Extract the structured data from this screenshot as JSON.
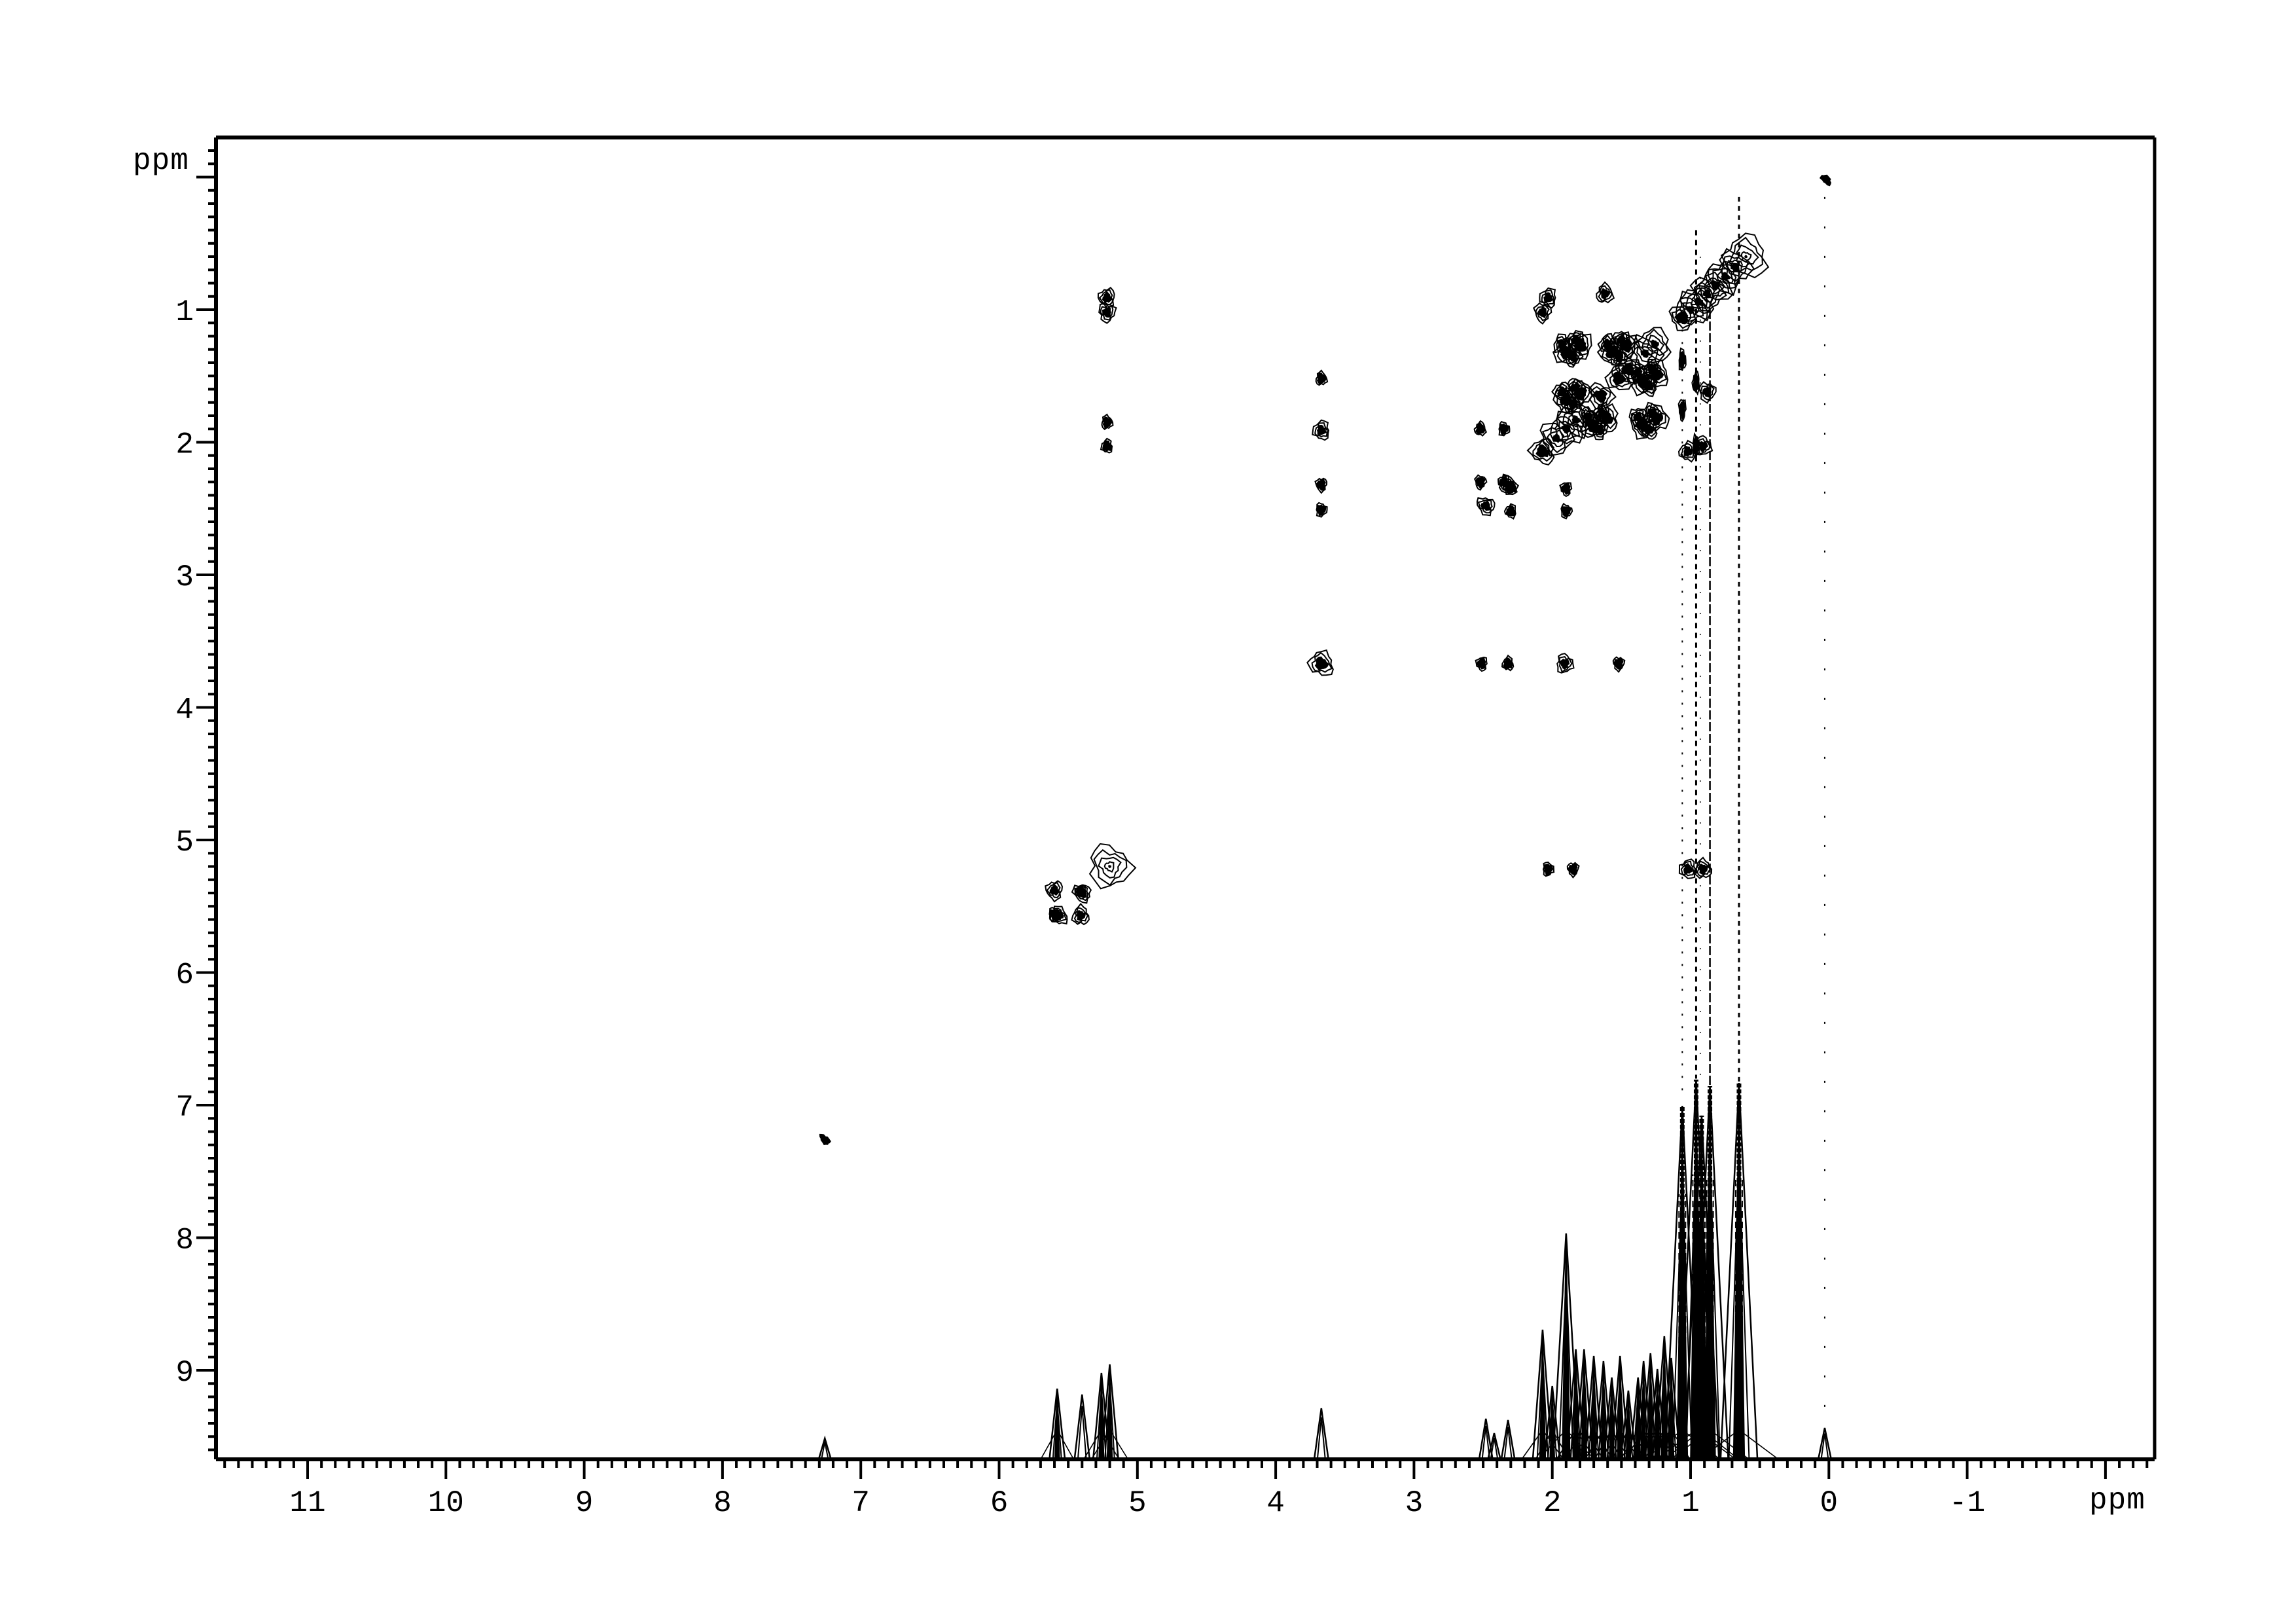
{
  "axes": {
    "x": {
      "unit_label": "ppm",
      "tick_labels": [
        "11",
        "10",
        "9",
        "8",
        "7",
        "6",
        "5",
        "4",
        "3",
        "2",
        "1",
        "0",
        "-1"
      ],
      "major_ticks": [
        11,
        10,
        9,
        8,
        7,
        6,
        5,
        4,
        3,
        2,
        1,
        0,
        -1,
        -2
      ],
      "minor_step": 0.1,
      "range": [
        11.66,
        -2.35
      ]
    },
    "y": {
      "unit_label": "ppm",
      "tick_labels": [
        "1",
        "2",
        "3",
        "4",
        "5",
        "6",
        "7",
        "8",
        "9"
      ],
      "major_ticks": [
        0,
        1,
        2,
        3,
        4,
        5,
        6,
        7,
        8,
        9
      ],
      "minor_step": 0.1,
      "range": [
        -0.3,
        9.68
      ]
    }
  },
  "chart_data": {
    "type": "heatmap",
    "subtype": "2D-NMR-contour-with-1D-projection",
    "xlabel": "ppm",
    "ylabel": "ppm",
    "x_range_ppm": [
      11.66,
      -2.35
    ],
    "y_range_ppm": [
      -0.3,
      9.68
    ],
    "grid": false,
    "diagonal_peaks": [
      [
        0.6,
        "xl"
      ],
      [
        0.68,
        "lg"
      ],
      [
        0.75,
        "lg"
      ],
      [
        0.82,
        "lg"
      ],
      [
        0.88,
        "lg"
      ],
      [
        0.94,
        "lg"
      ],
      [
        1.0,
        "lg"
      ],
      [
        1.06,
        "md"
      ],
      [
        1.26,
        "lg"
      ],
      [
        1.33,
        "lg"
      ],
      [
        1.45,
        "md"
      ],
      [
        1.52,
        "md"
      ],
      [
        1.65,
        "md"
      ],
      [
        1.83,
        "lg"
      ],
      [
        1.9,
        "lg"
      ],
      [
        1.97,
        "lg"
      ],
      [
        2.07,
        "md"
      ],
      [
        2.32,
        "sm"
      ],
      [
        2.48,
        "sm"
      ],
      [
        3.67,
        "md"
      ],
      [
        5.2,
        "xl"
      ],
      [
        5.4,
        "sm"
      ],
      [
        5.57,
        "sm"
      ],
      [
        7.26,
        "tiny"
      ],
      [
        0.02,
        "tiny"
      ]
    ],
    "cross_peaks": [
      {
        "f2": 5.22,
        "f1": 0.91,
        "size": "sm",
        "mirror": true
      },
      {
        "f2": 5.22,
        "f1": 1.02,
        "size": "sm",
        "mirror": true
      },
      {
        "f2": 5.22,
        "f1": 1.85,
        "size": "dot",
        "mirror": true
      },
      {
        "f2": 5.22,
        "f1": 2.03,
        "size": "dot",
        "mirror": true
      },
      {
        "f2": 5.6,
        "f1": 5.38,
        "size": "sm",
        "mirror": false
      },
      {
        "f2": 5.41,
        "f1": 5.57,
        "size": "sm",
        "mirror": false
      },
      {
        "f2": 5.6,
        "f1": 5.56,
        "size": "dot",
        "mirror": false
      },
      {
        "f2": 5.41,
        "f1": 5.39,
        "size": "dot",
        "mirror": false
      },
      {
        "f2": 3.67,
        "f1": 1.52,
        "size": "dot",
        "mirror": true
      },
      {
        "f2": 3.67,
        "f1": 1.91,
        "size": "sm",
        "mirror": true
      },
      {
        "f2": 3.67,
        "f1": 2.32,
        "size": "dot",
        "mirror": true
      },
      {
        "f2": 3.67,
        "f1": 2.51,
        "size": "dot",
        "mirror": true
      },
      {
        "f2": 1.62,
        "f1": 0.88,
        "size": "sm",
        "mirror": true
      },
      {
        "f2": 2.03,
        "f1": 0.91,
        "size": "sm",
        "mirror": true
      },
      {
        "f2": 2.07,
        "f1": 1.02,
        "size": "sm",
        "mirror": true
      },
      {
        "f2": 2.35,
        "f1": 1.9,
        "size": "dot",
        "mirror": true
      },
      {
        "f2": 2.52,
        "f1": 1.9,
        "size": "dot",
        "mirror": true
      },
      {
        "f2": 2.35,
        "f1": 2.3,
        "size": "dot",
        "mirror": true
      },
      {
        "f2": 2.52,
        "f1": 2.3,
        "size": "dot",
        "mirror": true
      },
      {
        "f2": 1.06,
        "f1": 1.38,
        "size": "vbar",
        "mirror": false
      },
      {
        "f2": 1.06,
        "f1": 1.75,
        "size": "vbar",
        "mirror": false
      },
      {
        "f2": 0.96,
        "f1": 1.55,
        "size": "vbar",
        "mirror": false
      },
      {
        "f2": 0.96,
        "f1": 2.03,
        "size": "vbar",
        "mirror": false
      }
    ],
    "cross_peak_clusters": [
      {
        "f2": 1.85,
        "f1": 1.3
      },
      {
        "f2": 1.52,
        "f1": 1.3
      },
      {
        "f2": 1.85,
        "f1": 1.66
      },
      {
        "f2": 1.3,
        "f1": 1.85
      },
      {
        "f2": 1.3,
        "f1": 1.52
      },
      {
        "f2": 1.66,
        "f1": 1.85
      }
    ],
    "noise_streaks_ppm": [
      {
        "x": 1.06,
        "from": 1.15,
        "to": 6.9,
        "w": 2,
        "dash": "3 16"
      },
      {
        "x": 0.96,
        "from": 0.4,
        "to": 6.8,
        "w": 3,
        "dash": "8 7"
      },
      {
        "x": 0.93,
        "from": 0.6,
        "to": 6.8,
        "w": 1.5,
        "dash": "2 30"
      },
      {
        "x": 0.86,
        "from": 1.0,
        "to": 6.9,
        "w": 2.5,
        "dash": "14 4"
      },
      {
        "x": 0.65,
        "from": 0.15,
        "to": 6.9,
        "w": 3,
        "dash": "7 7"
      },
      {
        "x": 0.03,
        "from": 0.15,
        "to": 9.4,
        "w": 2,
        "dash": "3 42"
      }
    ],
    "projection_1d_peaks": [
      [
        5.58,
        107
      ],
      [
        5.4,
        98
      ],
      [
        5.26,
        131
      ],
      [
        5.2,
        144
      ],
      [
        3.67,
        77
      ],
      [
        2.48,
        61
      ],
      [
        2.42,
        39
      ],
      [
        2.32,
        59
      ],
      [
        2.07,
        197
      ],
      [
        2.0,
        111
      ],
      [
        1.9,
        344
      ],
      [
        1.83,
        167
      ],
      [
        1.77,
        167
      ],
      [
        1.7,
        157
      ],
      [
        1.63,
        149
      ],
      [
        1.57,
        124
      ],
      [
        1.51,
        157
      ],
      [
        1.45,
        104
      ],
      [
        1.38,
        124
      ],
      [
        1.34,
        149
      ],
      [
        1.29,
        161
      ],
      [
        1.24,
        137
      ],
      [
        1.19,
        187
      ],
      [
        1.14,
        154
      ],
      [
        1.06,
        539
      ],
      [
        0.96,
        579
      ],
      [
        0.92,
        524
      ],
      [
        0.86,
        569
      ],
      [
        0.65,
        574
      ],
      [
        7.26,
        31
      ],
      [
        0.03,
        47
      ]
    ],
    "colors": {
      "ink": "#000000",
      "background": "#ffffff"
    }
  }
}
